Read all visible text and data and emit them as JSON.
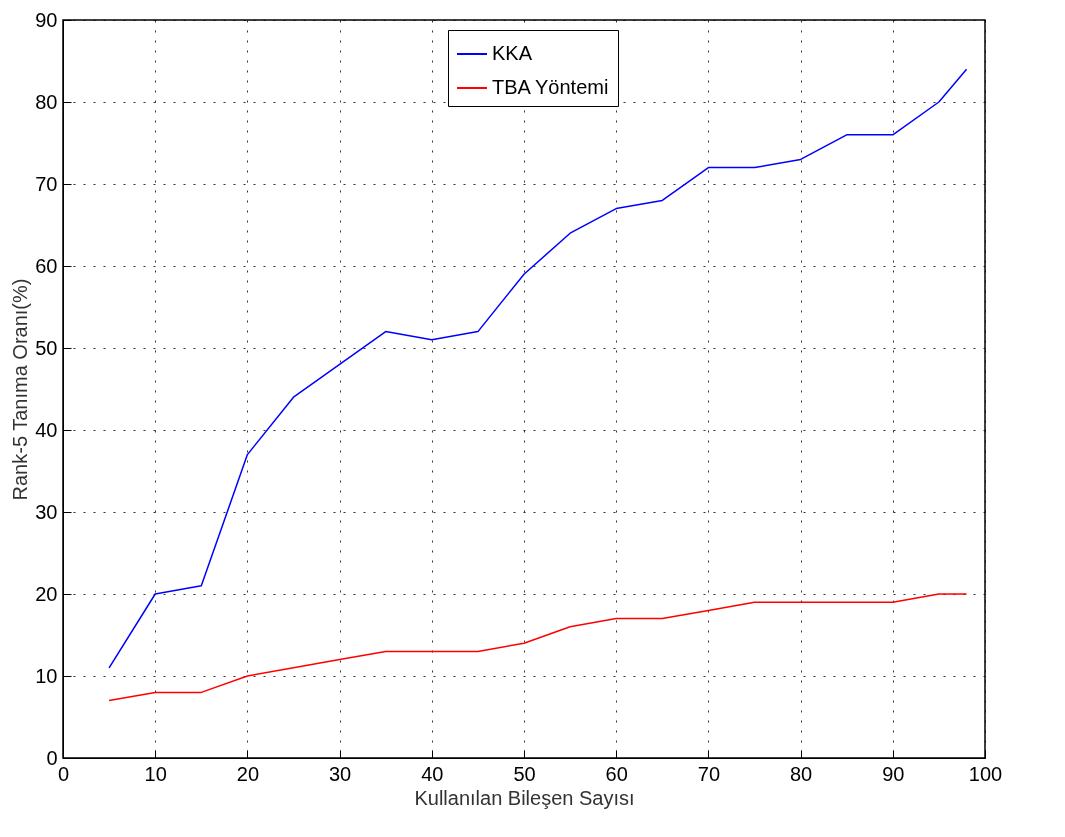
{
  "chart_data": {
    "type": "line",
    "xlabel": "Kullanılan Bileşen Sayısı",
    "ylabel": "Rank-5 Tanıma Oranı(%)",
    "x": [
      5,
      10,
      15,
      20,
      25,
      30,
      35,
      40,
      45,
      50,
      55,
      60,
      65,
      70,
      75,
      80,
      85,
      90,
      95,
      98
    ],
    "series": [
      {
        "name": "KKA",
        "color": "#0000ff",
        "values": [
          11,
          20,
          21,
          37,
          44,
          48,
          52,
          51,
          52,
          59,
          64,
          67,
          68,
          72,
          72,
          73,
          76,
          76,
          80,
          84
        ]
      },
      {
        "name": "TBA Yöntemi",
        "color": "#ff0000",
        "values": [
          7,
          8,
          8,
          10,
          11,
          12,
          13,
          13,
          13,
          14,
          16,
          17,
          17,
          18,
          19,
          19,
          19,
          19,
          20,
          20
        ]
      }
    ],
    "xlim": [
      0,
      100
    ],
    "xticks": [
      0,
      10,
      20,
      30,
      40,
      50,
      60,
      70,
      80,
      90,
      100
    ],
    "ylim": [
      0,
      90
    ],
    "yticks": [
      0,
      10,
      20,
      30,
      40,
      50,
      60,
      70,
      80,
      90
    ],
    "grid": true,
    "legend": "top",
    "marker": "none",
    "line_style": "solid"
  }
}
